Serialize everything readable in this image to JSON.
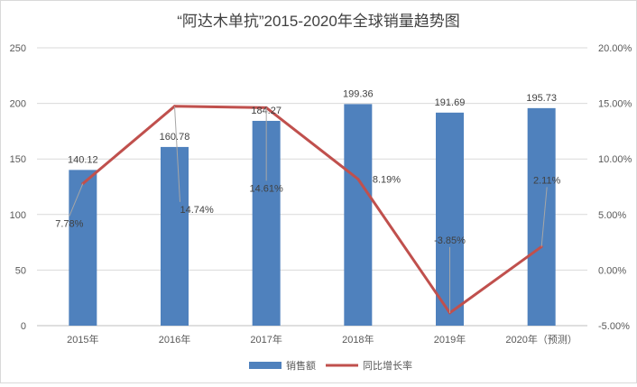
{
  "chart_data": {
    "type": "bar",
    "title": "“阿达木单抗”2015-2020年全球销量趋势图",
    "categories": [
      "2015年",
      "2016年",
      "2017年",
      "2018年",
      "2019年",
      "2020年（预测）"
    ],
    "series": [
      {
        "name": "销售额",
        "type": "bar",
        "axis": "left",
        "color": "#4F81BD",
        "values": [
          140.12,
          160.78,
          184.27,
          199.36,
          191.69,
          195.73
        ],
        "labels": [
          "140.12",
          "160.78",
          "184.27",
          "199.36",
          "191.69",
          "195.73"
        ]
      },
      {
        "name": "同比增长率",
        "type": "line",
        "axis": "right",
        "color": "#C0504D",
        "values": [
          7.78,
          14.74,
          14.61,
          8.19,
          -3.85,
          2.11
        ],
        "labels": [
          "7.78%",
          "14.74%",
          "14.61%",
          "8.19%",
          "-3.85%",
          "2.11%"
        ]
      }
    ],
    "y_left": {
      "range": [
        0,
        250
      ],
      "ticks": [
        0,
        50,
        100,
        150,
        200,
        250
      ],
      "tick_labels": [
        "0",
        "50",
        "100",
        "150",
        "200",
        "250"
      ]
    },
    "y_right": {
      "range": [
        -5,
        20
      ],
      "ticks": [
        -5,
        0,
        5,
        10,
        15,
        20
      ],
      "tick_labels": [
        "-5.00%",
        "0.00%",
        "5.00%",
        "10.00%",
        "15.00%",
        "20.00%"
      ]
    },
    "grid": true,
    "legend_position": "bottom"
  }
}
